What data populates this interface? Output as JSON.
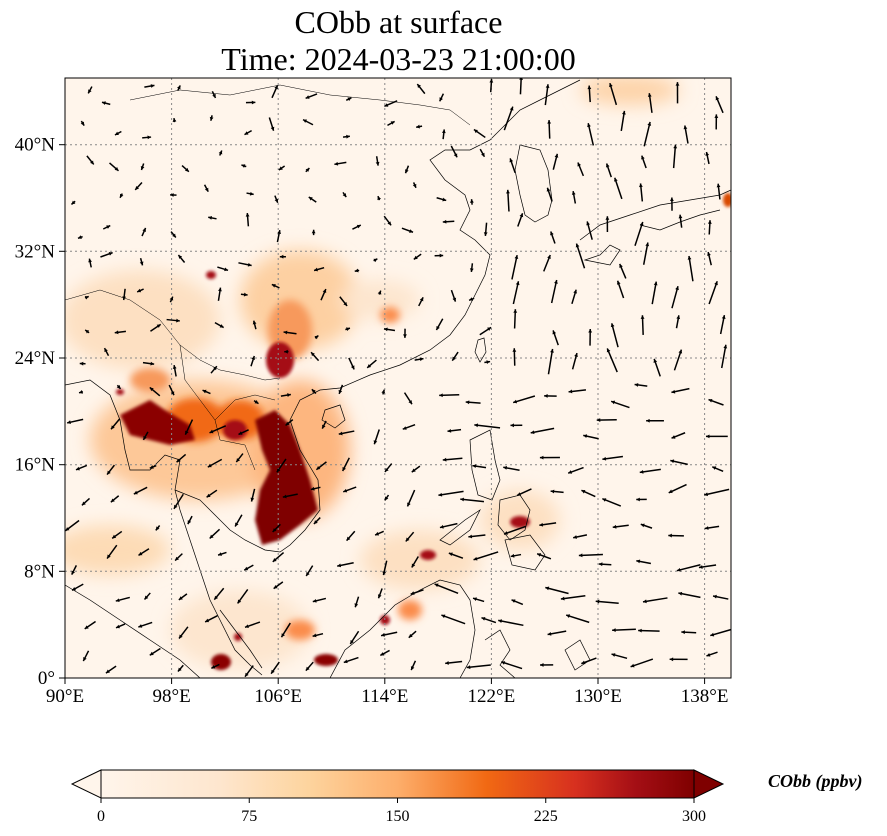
{
  "title": {
    "line1": "CObb at surface",
    "line2": "Time: 2024-03-23 21:00:00"
  },
  "map": {
    "lon_range": [
      90,
      140
    ],
    "lat_range": [
      0,
      45
    ],
    "x_ticks": [
      "90°E",
      "98°E",
      "106°E",
      "114°E",
      "122°E",
      "130°E",
      "138°E"
    ],
    "y_ticks": [
      "0°",
      "8°N",
      "16°N",
      "24°N",
      "32°N",
      "40°N"
    ],
    "gridlines": true
  },
  "colorbar": {
    "label": "CObb (ppbv)",
    "ticks": [
      "0",
      "75",
      "150",
      "225",
      "300"
    ],
    "range": [
      0,
      300
    ],
    "extend": "both",
    "colors": [
      "#fff5eb",
      "#fdd49e",
      "#fdae6b",
      "#f16913",
      "#d94801",
      "#a50f15",
      "#7f0000"
    ]
  },
  "colors": {
    "background": "#fff5eb",
    "high": "#7f0000",
    "coast": "#000000",
    "grid": "#888888"
  }
}
